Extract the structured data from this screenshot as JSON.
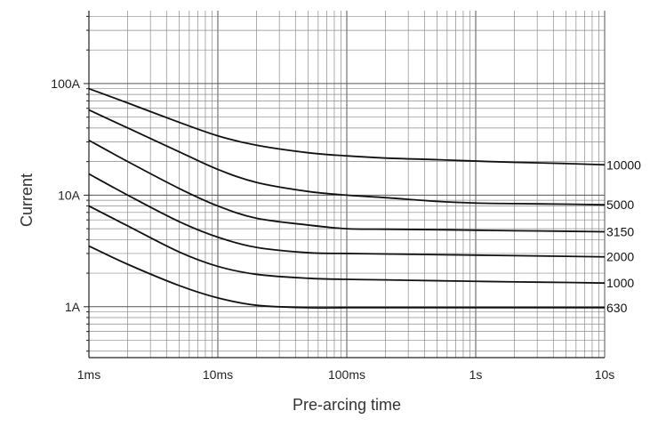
{
  "chart_data": {
    "type": "line",
    "xlabel": "Pre-arcing time",
    "ylabel": "Current",
    "x_scale": "log",
    "y_scale": "log",
    "x_unit": "s",
    "y_unit": "A",
    "xlim": [
      0.001,
      10
    ],
    "ylim": [
      0.35,
      450
    ],
    "grid": true,
    "legend": "none",
    "x_ticks": [
      {
        "value": 0.001,
        "label": "1ms"
      },
      {
        "value": 0.01,
        "label": "10ms"
      },
      {
        "value": 0.1,
        "label": "100ms"
      },
      {
        "value": 1,
        "label": "1s"
      },
      {
        "value": 10,
        "label": "10s"
      }
    ],
    "y_ticks": [
      {
        "value": 1,
        "label": "1A"
      },
      {
        "value": 10,
        "label": "10A"
      },
      {
        "value": 100,
        "label": "100A"
      }
    ],
    "series": [
      {
        "name": "10000",
        "x": [
          0.001,
          0.002,
          0.005,
          0.01,
          0.02,
          0.05,
          0.1,
          0.2,
          0.5,
          1,
          2,
          5,
          10
        ],
        "y": [
          90,
          67,
          45,
          34,
          28,
          24,
          22.5,
          21.5,
          20.8,
          20.2,
          19.7,
          19.2,
          18.7
        ]
      },
      {
        "name": "5000",
        "x": [
          0.001,
          0.002,
          0.005,
          0.01,
          0.02,
          0.05,
          0.1,
          0.2,
          0.5,
          1,
          2,
          5,
          10
        ],
        "y": [
          58,
          40,
          24.5,
          17,
          13,
          10.8,
          10,
          9.5,
          8.8,
          8.5,
          8.4,
          8.3,
          8.2
        ]
      },
      {
        "name": "3150",
        "x": [
          0.001,
          0.002,
          0.005,
          0.01,
          0.02,
          0.05,
          0.1,
          0.2,
          0.5,
          1,
          2,
          5,
          10
        ],
        "y": [
          31,
          20,
          11.5,
          8,
          6.2,
          5.4,
          5.0,
          4.95,
          4.9,
          4.85,
          4.8,
          4.75,
          4.7
        ]
      },
      {
        "name": "2000",
        "x": [
          0.001,
          0.002,
          0.005,
          0.01,
          0.02,
          0.05,
          0.1,
          0.2,
          0.5,
          1,
          2,
          5,
          10
        ],
        "y": [
          15.5,
          10,
          5.8,
          4.2,
          3.4,
          3.05,
          3.0,
          2.97,
          2.93,
          2.9,
          2.87,
          2.83,
          2.8
        ]
      },
      {
        "name": "1000",
        "x": [
          0.001,
          0.002,
          0.005,
          0.01,
          0.02,
          0.05,
          0.1,
          0.2,
          0.5,
          1,
          2,
          5,
          10
        ],
        "y": [
          8,
          5.3,
          3.1,
          2.3,
          1.95,
          1.8,
          1.76,
          1.74,
          1.71,
          1.69,
          1.67,
          1.65,
          1.63
        ]
      },
      {
        "name": "630",
        "x": [
          0.001,
          0.002,
          0.005,
          0.01,
          0.02,
          0.05,
          0.1,
          0.2,
          0.5,
          1,
          2,
          5,
          10
        ],
        "y": [
          3.5,
          2.4,
          1.55,
          1.2,
          1.03,
          0.98,
          0.98,
          0.98,
          0.98,
          0.98,
          0.98,
          0.98,
          0.98
        ]
      }
    ]
  }
}
